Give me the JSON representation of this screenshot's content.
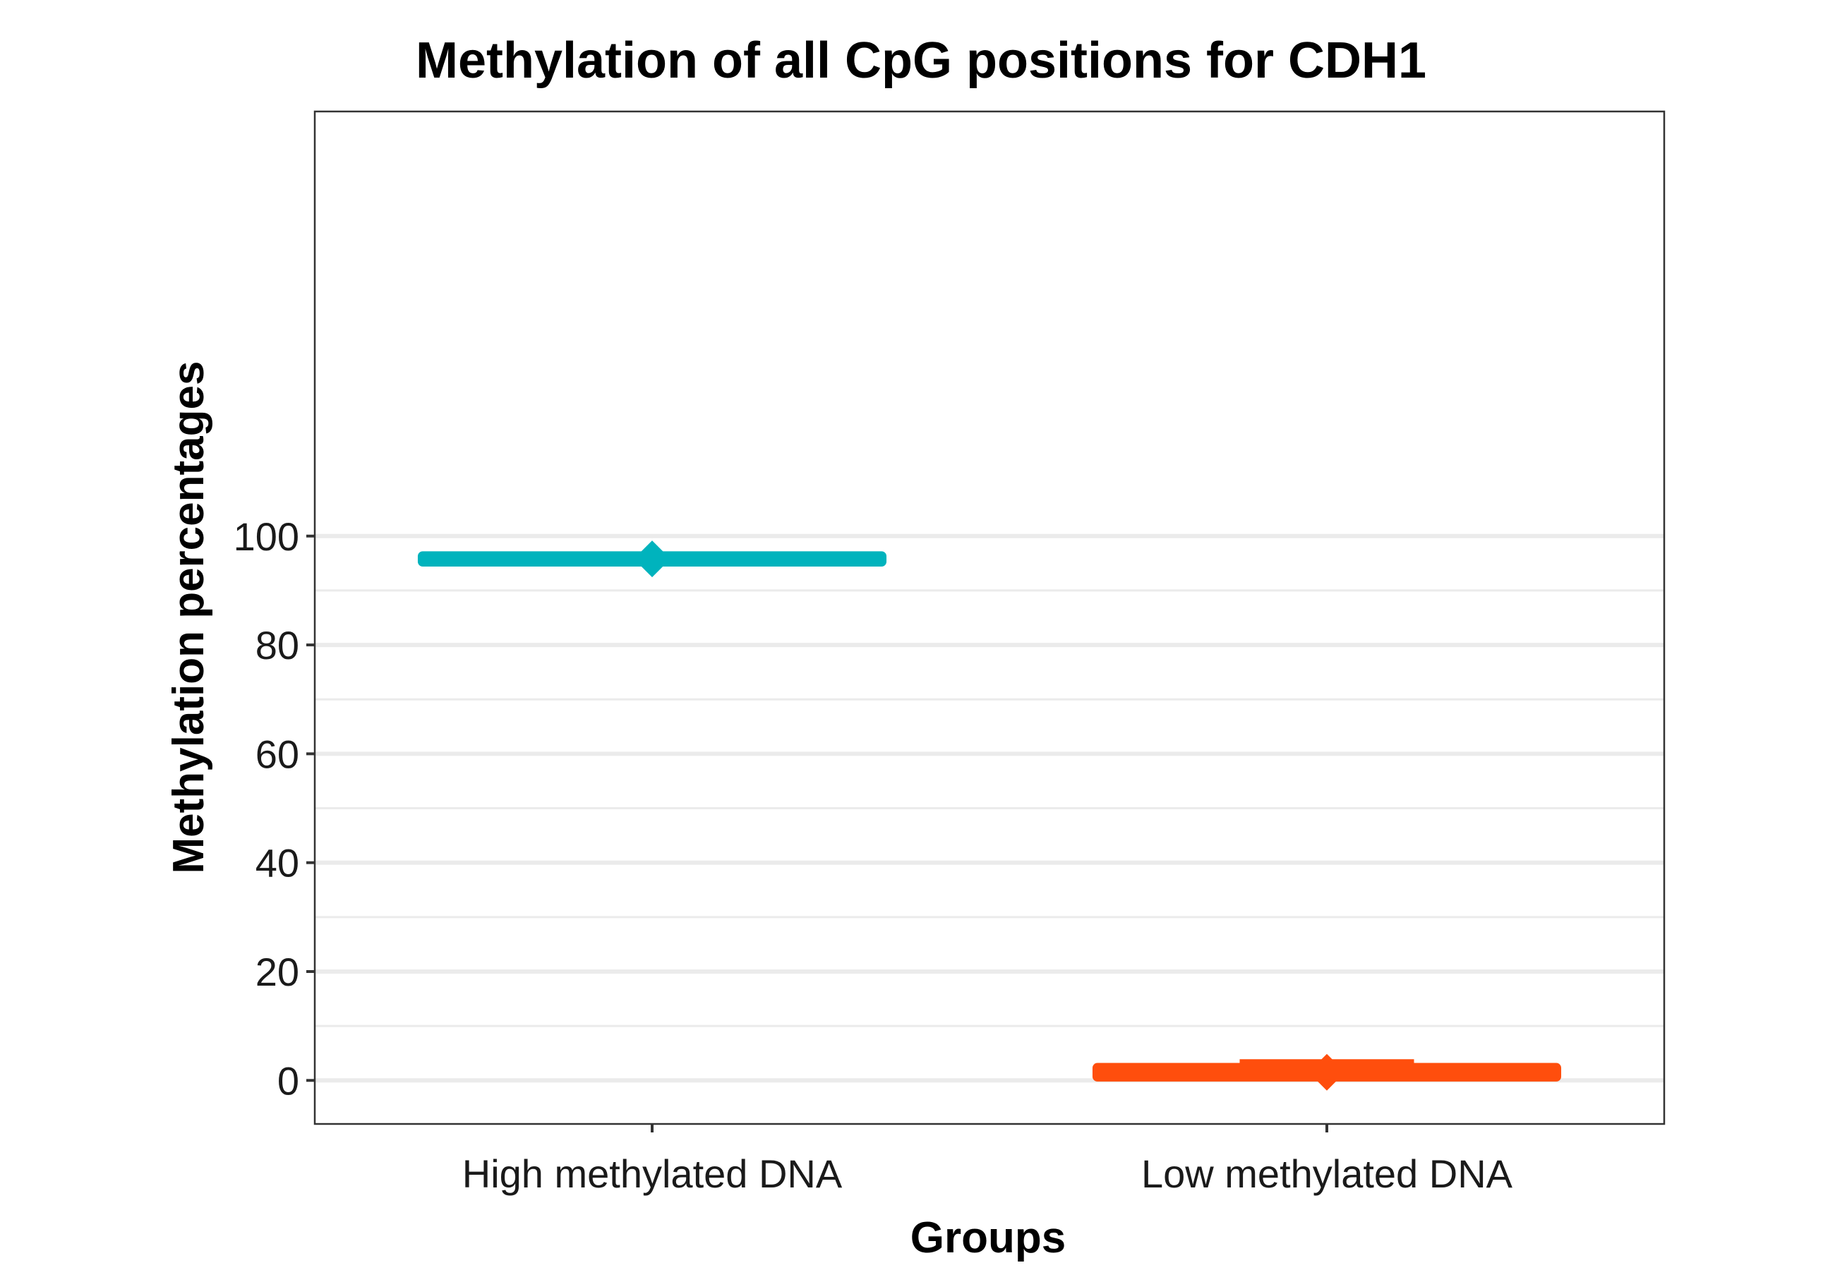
{
  "chart_data": {
    "type": "boxplot",
    "title": "Methylation of all CpG positions for CDH1",
    "xlabel": "Groups",
    "ylabel": "Methylation percentages",
    "categories": [
      "High methylated DNA",
      "Low methylated DNA"
    ],
    "y_ticks": [
      "0",
      "20",
      "40",
      "60",
      "80",
      "100"
    ],
    "ylim": [
      -8,
      178
    ],
    "grid": {
      "major_y": true,
      "minor_y": true,
      "x": false
    },
    "legend": "none",
    "series": [
      {
        "category": "High methylated DNA",
        "color": "#00b3bd",
        "whisker_low": 95.3,
        "q1": 95.3,
        "median": 95.8,
        "q3": 96.3,
        "whisker_high": 96.3,
        "mean": 95.8
      },
      {
        "category": "Low methylated DNA",
        "color": "#ff4e0d",
        "whisker_low": 0.5,
        "q1": 0.7,
        "median": 1.2,
        "q3": 2.3,
        "whisker_high": 3.5,
        "mean": 1.5
      }
    ]
  }
}
